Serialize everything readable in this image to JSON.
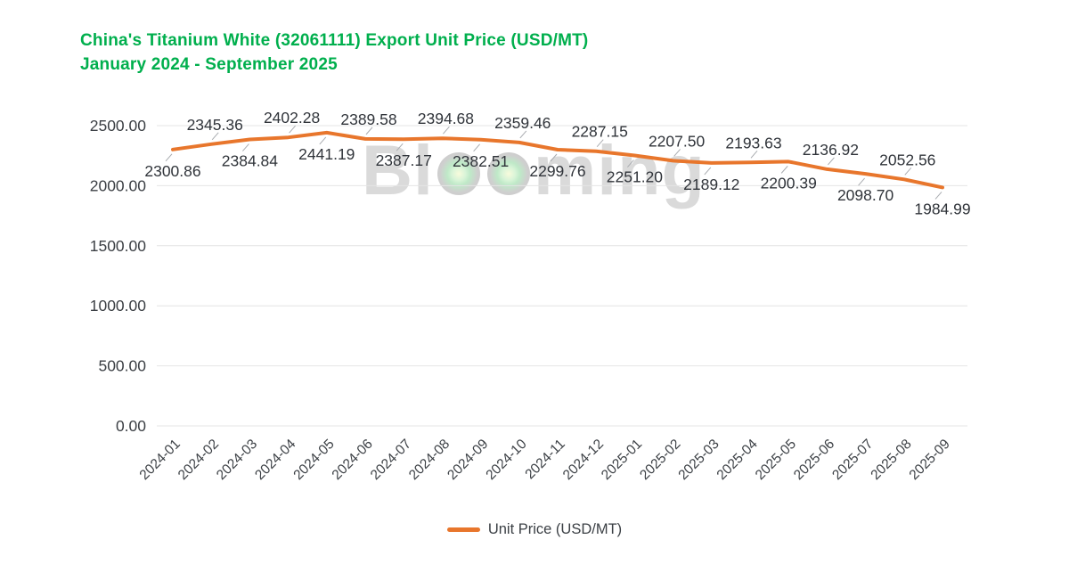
{
  "title": {
    "line1": "China's Titanium White (32061111) Export Unit Price (USD/MT)",
    "line2": "January 2024 - September 2025"
  },
  "watermark": {
    "text": "Blooming",
    "prefix": "Bl",
    "suffix": "ming"
  },
  "legend": {
    "label": "Unit Price (USD/MT)"
  },
  "colors": {
    "title_green": "#00AF4D",
    "line_orange": "#E8762C",
    "grid": "#E4E4E4",
    "axis_text": "#3C4045",
    "label_text": "#30343A",
    "leader_line": "#A9ACB0",
    "watermark_gray": "#DADADA"
  },
  "chart_data": {
    "type": "line",
    "title": "China's Titanium White (32061111) Export Unit Price (USD/MT) January 2024 - September 2025",
    "categories": [
      "2024-01",
      "2024-02",
      "2024-03",
      "2024-04",
      "2024-05",
      "2024-06",
      "2024-07",
      "2024-08",
      "2024-09",
      "2024-10",
      "2024-11",
      "2024-12",
      "2025-01",
      "2025-02",
      "2025-03",
      "2025-04",
      "2025-05",
      "2025-06",
      "2025-07",
      "2025-08",
      "2025-09"
    ],
    "series": [
      {
        "name": "Unit Price (USD/MT)",
        "values": [
          2300.86,
          2345.36,
          2384.84,
          2402.28,
          2441.19,
          2389.58,
          2387.17,
          2394.68,
          2382.51,
          2359.46,
          2299.76,
          2287.15,
          2251.2,
          2207.5,
          2189.12,
          2193.63,
          2200.39,
          2136.92,
          2098.7,
          2052.56,
          1984.99
        ]
      }
    ],
    "xlabel": "",
    "ylabel": "",
    "ylim": [
      0,
      2500
    ],
    "yticks": [
      0,
      500,
      1000,
      1500,
      2000,
      2500
    ],
    "ytick_labels": [
      "0.00",
      "500.00",
      "1000.00",
      "1500.00",
      "2000.00",
      "2500.00"
    ],
    "grid": true,
    "data_labels": true,
    "legend_position": "bottom"
  }
}
